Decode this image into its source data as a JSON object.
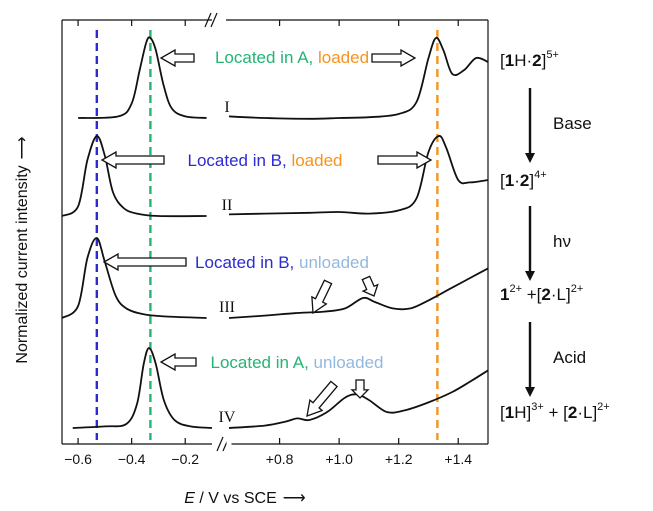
{
  "chart_data": {
    "type": "line",
    "xlabel_prefix": "E",
    "xlabel_rest": " / V vs SCE",
    "xlabel_arrow": "⟶",
    "ylabel": "Normalized current intensity",
    "ylabel_arrow": "⟶",
    "x_ticks_left": [
      "−0.6",
      "−0.4",
      "−0.2"
    ],
    "x_ticks_right": [
      "+0.8",
      "+1.0",
      "+1.2",
      "+1.4"
    ],
    "xlim_left": [
      -0.66,
      -0.1
    ],
    "xlim_right": [
      0.62,
      1.5
    ],
    "colors": {
      "stationA": "#22b573",
      "stationB": "#2b2bd0",
      "loaded": "#f7931e",
      "unloaded": "#93b8e0",
      "curve": "#111111"
    },
    "reference_lines": [
      {
        "x": -0.33,
        "color": "stationA"
      },
      {
        "x": -0.53,
        "color": "stationB"
      },
      {
        "x": 1.33,
        "color": "loaded"
      }
    ],
    "series": [
      {
        "name": "I",
        "left": [
          [
            -0.6,
            0.0
          ],
          [
            -0.45,
            0.02
          ],
          [
            -0.4,
            0.18
          ],
          [
            -0.37,
            0.6
          ],
          [
            -0.345,
            0.95
          ],
          [
            -0.33,
            1.0
          ],
          [
            -0.31,
            0.85
          ],
          [
            -0.28,
            0.4
          ],
          [
            -0.25,
            0.12
          ],
          [
            -0.2,
            0.02
          ],
          [
            -0.12,
            0.0
          ]
        ],
        "right": [
          [
            0.63,
            0.02
          ],
          [
            0.75,
            0.0
          ],
          [
            0.9,
            -0.01
          ],
          [
            1.0,
            0.0
          ],
          [
            1.1,
            0.01
          ],
          [
            1.2,
            0.05
          ],
          [
            1.26,
            0.2
          ],
          [
            1.3,
            0.75
          ],
          [
            1.325,
            1.0
          ],
          [
            1.35,
            0.85
          ],
          [
            1.38,
            0.55
          ],
          [
            1.42,
            0.6
          ],
          [
            1.46,
            0.75
          ],
          [
            1.5,
            0.7
          ]
        ]
      },
      {
        "name": "II",
        "left": [
          [
            -0.66,
            0.0
          ],
          [
            -0.6,
            0.12
          ],
          [
            -0.565,
            0.7
          ],
          [
            -0.53,
            1.0
          ],
          [
            -0.5,
            0.75
          ],
          [
            -0.47,
            0.3
          ],
          [
            -0.43,
            0.1
          ],
          [
            -0.38,
            0.03
          ],
          [
            -0.3,
            0.0
          ],
          [
            -0.12,
            0.0
          ]
        ],
        "right": [
          [
            0.63,
            0.02
          ],
          [
            0.75,
            0.03
          ],
          [
            0.9,
            0.04
          ],
          [
            1.0,
            0.05
          ],
          [
            1.1,
            0.03
          ],
          [
            1.2,
            0.07
          ],
          [
            1.26,
            0.22
          ],
          [
            1.3,
            0.8
          ],
          [
            1.335,
            1.0
          ],
          [
            1.36,
            0.85
          ],
          [
            1.4,
            0.45
          ],
          [
            1.44,
            0.42
          ],
          [
            1.5,
            0.45
          ]
        ]
      },
      {
        "name": "III",
        "left": [
          [
            -0.66,
            0.0
          ],
          [
            -0.6,
            0.15
          ],
          [
            -0.565,
            0.75
          ],
          [
            -0.53,
            1.0
          ],
          [
            -0.5,
            0.7
          ],
          [
            -0.46,
            0.28
          ],
          [
            -0.42,
            0.12
          ],
          [
            -0.36,
            0.05
          ],
          [
            -0.28,
            0.02
          ],
          [
            -0.12,
            0.0
          ]
        ],
        "right": [
          [
            0.63,
            0.0
          ],
          [
            0.75,
            0.03
          ],
          [
            0.85,
            0.06
          ],
          [
            0.95,
            0.08
          ],
          [
            1.02,
            0.12
          ],
          [
            1.08,
            0.25
          ],
          [
            1.12,
            0.2
          ],
          [
            1.18,
            0.12
          ],
          [
            1.24,
            0.12
          ],
          [
            1.3,
            0.22
          ],
          [
            1.38,
            0.38
          ],
          [
            1.44,
            0.5
          ],
          [
            1.5,
            0.62
          ]
        ]
      },
      {
        "name": "IV",
        "left": [
          [
            -0.62,
            0.0
          ],
          [
            -0.5,
            0.02
          ],
          [
            -0.42,
            0.05
          ],
          [
            -0.38,
            0.3
          ],
          [
            -0.355,
            0.8
          ],
          [
            -0.335,
            1.0
          ],
          [
            -0.31,
            0.8
          ],
          [
            -0.28,
            0.35
          ],
          [
            -0.24,
            0.1
          ],
          [
            -0.18,
            0.02
          ],
          [
            -0.1,
            0.0
          ]
        ],
        "right": [
          [
            0.63,
            0.0
          ],
          [
            0.75,
            0.03
          ],
          [
            0.82,
            0.08
          ],
          [
            0.86,
            0.12
          ],
          [
            0.9,
            0.1
          ],
          [
            0.96,
            0.2
          ],
          [
            1.02,
            0.38
          ],
          [
            1.06,
            0.42
          ],
          [
            1.1,
            0.35
          ],
          [
            1.16,
            0.2
          ],
          [
            1.22,
            0.22
          ],
          [
            1.3,
            0.32
          ],
          [
            1.38,
            0.45
          ],
          [
            1.44,
            0.58
          ],
          [
            1.5,
            0.72
          ]
        ]
      }
    ],
    "annotations": [
      {
        "station": "Located in A",
        "sep": ", ",
        "state": "loaded",
        "station_color": "stationA",
        "state_color": "loaded"
      },
      {
        "station": "Located in B",
        "sep": ", ",
        "state": "loaded",
        "station_color": "stationB",
        "state_color": "loaded"
      },
      {
        "station": "Located in B",
        "sep": ", ",
        "state": "unloaded",
        "station_color": "stationB",
        "state_color": "unloaded"
      },
      {
        "station": "Located in A",
        "sep": ", ",
        "state": "unloaded",
        "station_color": "stationA",
        "state_color": "unloaded"
      }
    ],
    "scheme": {
      "species": [
        {
          "segments": [
            {
              "t": "[",
              "b": false
            },
            {
              "t": "1",
              "b": true
            },
            {
              "t": "H·",
              "b": false
            },
            {
              "t": "2",
              "b": true
            },
            {
              "t": "]",
              "b": false
            }
          ],
          "sup": "5+"
        },
        {
          "segments": [
            {
              "t": "[",
              "b": false
            },
            {
              "t": "1",
              "b": true
            },
            {
              "t": "·",
              "b": false
            },
            {
              "t": "2",
              "b": true
            },
            {
              "t": "]",
              "b": false
            }
          ],
          "sup": "4+"
        },
        {
          "segments": [
            {
              "t": "1",
              "b": true
            }
          ],
          "sup": "2+",
          "tail": [
            {
              "t": " +[",
              "b": false
            },
            {
              "t": "2",
              "b": true
            },
            {
              "t": "·L]",
              "b": false
            }
          ],
          "tail_sup": "2+"
        },
        {
          "segments": [
            {
              "t": "[",
              "b": false
            },
            {
              "t": "1",
              "b": true
            },
            {
              "t": "H]",
              "b": false
            }
          ],
          "sup": "3+",
          "tail": [
            {
              "t": " + [",
              "b": false
            },
            {
              "t": "2",
              "b": true
            },
            {
              "t": "·L]",
              "b": false
            }
          ],
          "tail_sup": "2+"
        }
      ],
      "steps": [
        "Base",
        "hν",
        "Acid"
      ]
    }
  }
}
